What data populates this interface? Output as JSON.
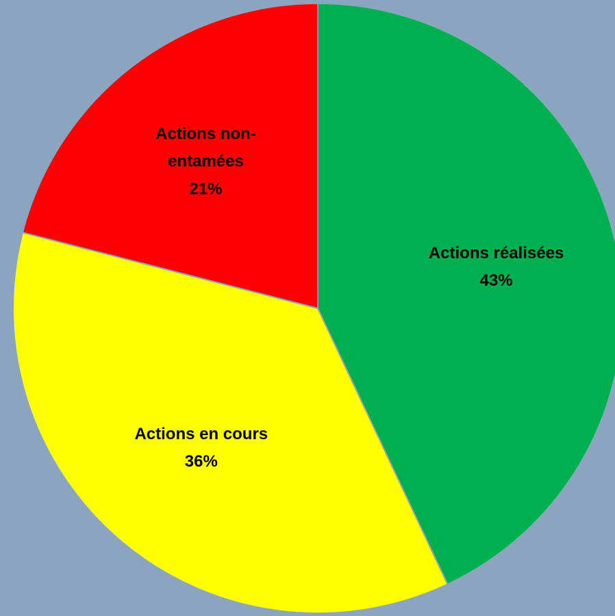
{
  "chart_data": {
    "type": "pie",
    "categories": [
      "Actions réalisées",
      "Actions en cours",
      "Actions non-entamées"
    ],
    "values": [
      43,
      36,
      21
    ],
    "value_labels": [
      "43%",
      "36%",
      "21%"
    ],
    "colors": [
      "#00b050",
      "#ffff00",
      "#ff0000"
    ]
  }
}
